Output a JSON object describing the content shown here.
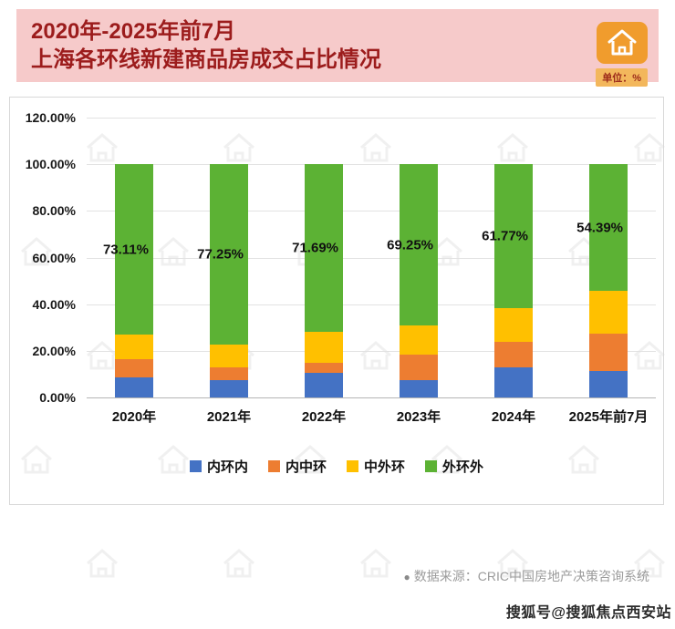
{
  "header": {
    "title_line1": "2020年-2025年前7月",
    "title_line2": "上海各环线新建商品房成交占比情况",
    "unit_badge": "单位：%"
  },
  "chart_data": {
    "type": "bar",
    "subtype": "stacked",
    "categories": [
      "2020年",
      "2021年",
      "2022年",
      "2023年",
      "2024年",
      "2025年前7月"
    ],
    "series": [
      {
        "name": "内环内",
        "color": "#4472c4",
        "values": [
          8.5,
          7.5,
          10.5,
          7.5,
          13.0,
          11.5
        ]
      },
      {
        "name": "内中环",
        "color": "#ed7d31",
        "values": [
          8.0,
          5.5,
          4.5,
          11.0,
          11.0,
          16.0
        ]
      },
      {
        "name": "中外环",
        "color": "#ffc000",
        "values": [
          10.39,
          9.75,
          13.31,
          12.25,
          14.23,
          18.11
        ]
      },
      {
        "name": "外环外",
        "color": "#5cb234",
        "values": [
          73.11,
          77.25,
          71.69,
          69.25,
          61.77,
          54.39
        ]
      }
    ],
    "labels": [
      "73.11%",
      "77.25%",
      "71.69%",
      "69.25%",
      "61.77%",
      "54.39%"
    ],
    "ylim": [
      0,
      120
    ],
    "yticks": [
      "120.00%",
      "100.00%",
      "80.00%",
      "60.00%",
      "40.00%",
      "20.00%",
      "0.00%"
    ],
    "grid": true,
    "legend_position": "bottom"
  },
  "footer": {
    "source_bullet": "●",
    "source_text": "数据来源：CRIC中国房地产决策咨询系统",
    "watermark": "搜狐号@搜狐焦点西安站"
  }
}
